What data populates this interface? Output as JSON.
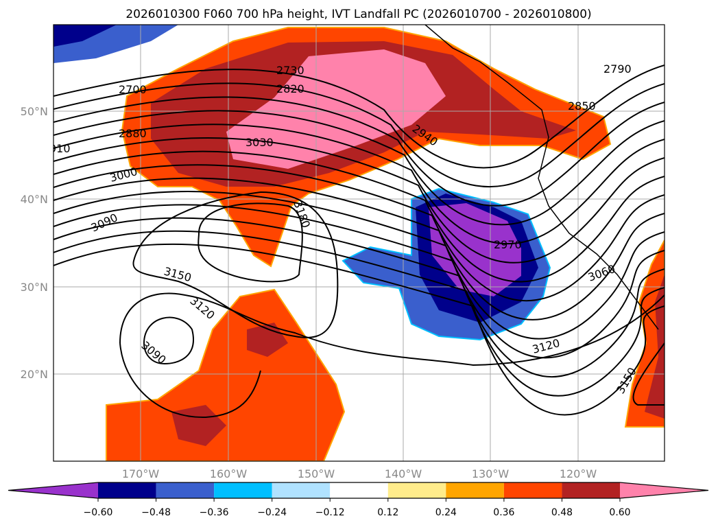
{
  "title": "2026010300 F060 700 hPa height, IVT Landfall PC (2026010700 - 2026010800)",
  "lat_labels": [
    "50°N",
    "40°N",
    "30°N",
    "20°N"
  ],
  "lon_labels": [
    "170°W",
    "160°W",
    "150°W",
    "140°W",
    "130°W",
    "120°W"
  ],
  "colorbar": {
    "ticks": [
      "−0.60",
      "−0.48",
      "−0.36",
      "−0.24",
      "−0.12",
      "0.12",
      "0.24",
      "0.36",
      "0.48",
      "0.60"
    ],
    "colors": [
      "#9932CC",
      "#00008B",
      "#3A5FCD",
      "#00BFFF",
      "#B0E2FF",
      "#FFFFFF",
      "#FFEC8B",
      "#FFA500",
      "#FF4500",
      "#B22222",
      "#FF82AB"
    ]
  },
  "contour_labels": [
    "2700",
    "2730",
    "2820",
    "2790",
    "2850",
    "2880",
    "910",
    "3030",
    "2940",
    "3000",
    "3090",
    "3180",
    "2970",
    "3150",
    "3060",
    "3120",
    "3090",
    "3120",
    "3150"
  ]
}
